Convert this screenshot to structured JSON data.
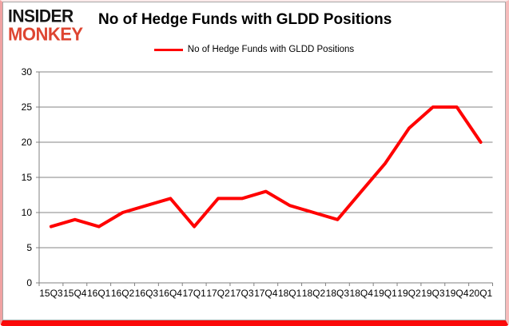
{
  "logo": {
    "line1": "INSIDER",
    "line2": "MONKEY"
  },
  "header": {
    "title": "No of Hedge Funds with GLDD Positions"
  },
  "legend": {
    "label": "No of Hedge Funds with GLDD Positions",
    "swatch_color": "#ff0000"
  },
  "chart_data": {
    "type": "line",
    "title": "No of Hedge Funds with GLDD Positions",
    "categories": [
      "15Q3",
      "15Q4",
      "16Q1",
      "16Q2",
      "16Q3",
      "16Q4",
      "17Q1",
      "17Q2",
      "17Q3",
      "17Q4",
      "18Q1",
      "18Q2",
      "18Q3",
      "18Q4",
      "19Q1",
      "19Q2",
      "19Q3",
      "19Q4",
      "20Q1"
    ],
    "series": [
      {
        "name": "No of Hedge Funds with GLDD Positions",
        "values": [
          8,
          9,
          8,
          10,
          11,
          12,
          8,
          12,
          12,
          13,
          11,
          10,
          9,
          13,
          17,
          22,
          25,
          25,
          20
        ]
      }
    ],
    "xlabel": "",
    "ylabel": "",
    "ylim": [
      0,
      30
    ],
    "yticks": [
      0,
      5,
      10,
      15,
      20,
      25,
      30
    ],
    "grid": true,
    "legend_position": "top",
    "line_color": "#ff0000",
    "axis_color": "#808080",
    "grid_color": "#868686"
  }
}
